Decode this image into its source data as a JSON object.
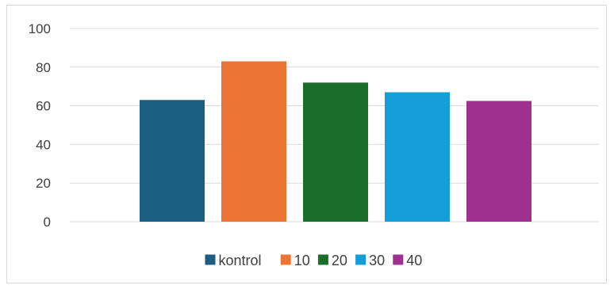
{
  "chart_data": {
    "type": "bar",
    "categories": [
      "kontrol",
      "10",
      "20",
      "30",
      "40"
    ],
    "values": [
      63,
      83,
      72,
      67,
      62.5
    ],
    "colors": [
      "#1a5e82",
      "#ea7433",
      "#1b6d2a",
      "#149ed7",
      "#a0308f"
    ],
    "title": "",
    "xlabel": "",
    "ylabel": "",
    "ylim": [
      0,
      100
    ],
    "yticks": [
      "0",
      "20",
      "40",
      "60",
      "80",
      "100"
    ],
    "grid": true,
    "legend": {
      "position": "bottom",
      "entries": [
        "kontrol",
        "10",
        "20",
        "30",
        "40"
      ]
    }
  }
}
